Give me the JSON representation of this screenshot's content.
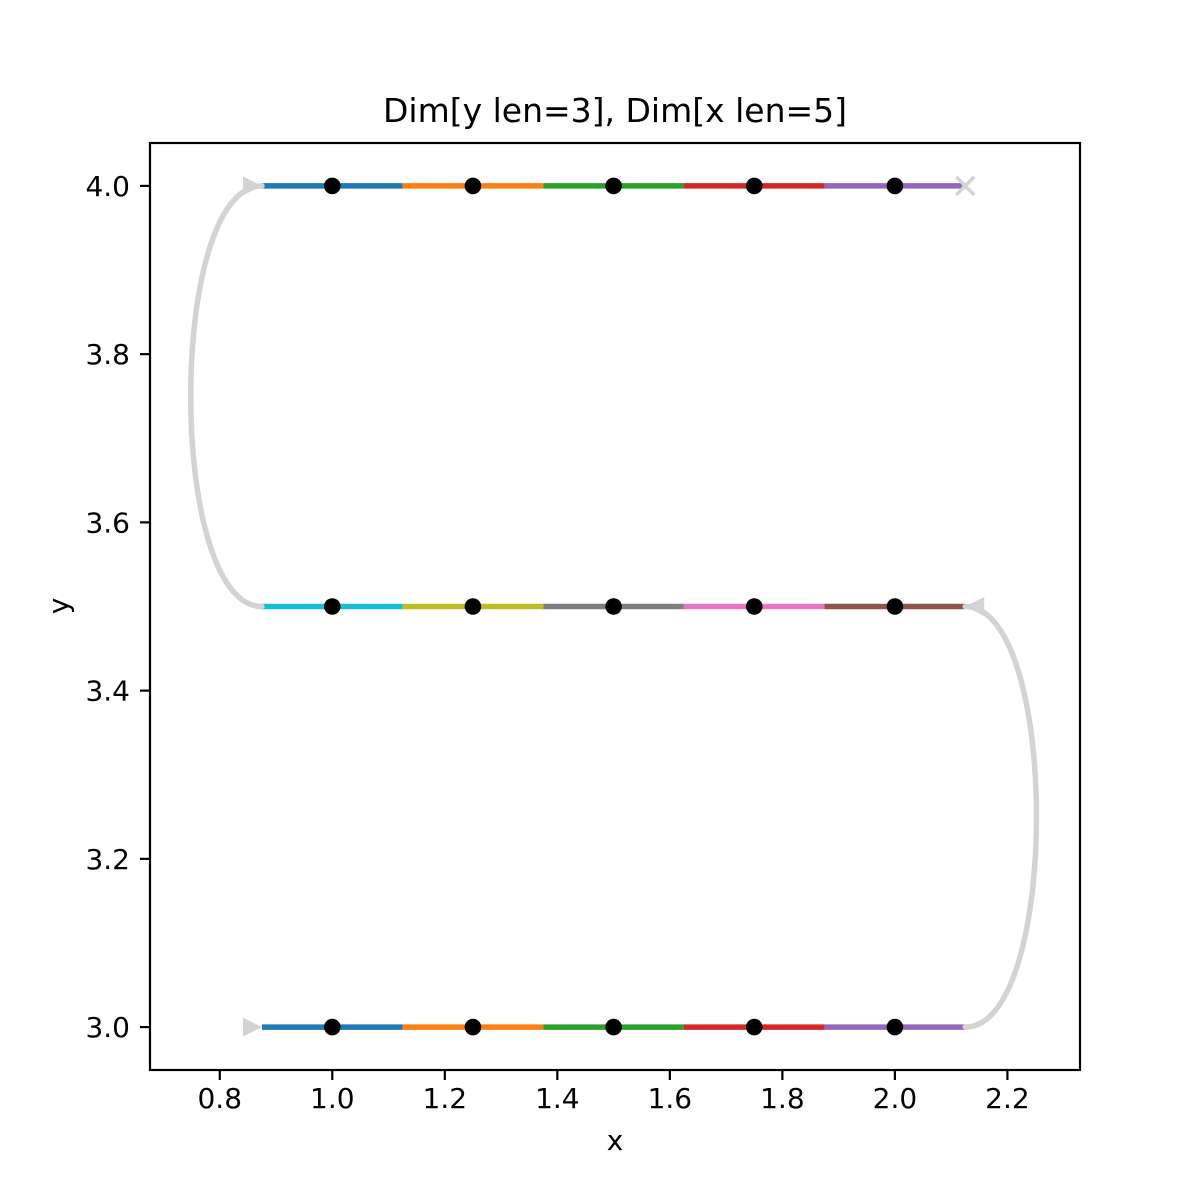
{
  "chart_data": {
    "type": "line",
    "title": "Dim[y len=3], Dim[x len=5]",
    "xlabel": "x",
    "ylabel": "y",
    "grid": false,
    "legend": null,
    "xlim": [
      0.676,
      2.329
    ],
    "ylim": [
      2.949,
      4.051
    ],
    "x_tick_values": [
      0.8,
      1.0,
      1.2,
      1.4,
      1.6,
      1.8,
      2.0,
      2.2
    ],
    "x_tick_labels": [
      "0.8",
      "1.0",
      "1.2",
      "1.4",
      "1.6",
      "1.8",
      "2.0",
      "2.2"
    ],
    "y_tick_values": [
      3.0,
      3.2,
      3.4,
      3.6,
      3.8,
      4.0
    ],
    "y_tick_labels": [
      "3.0",
      "3.2",
      "3.4",
      "3.6",
      "3.8",
      "4.0"
    ],
    "point_x_values": [
      1.0,
      1.25,
      1.5,
      1.75,
      2.0
    ],
    "row_y_values": [
      3.0,
      3.5,
      4.0
    ],
    "segment_boundaries": [
      0.875,
      1.125,
      1.375,
      1.625,
      1.875,
      2.125
    ],
    "rows": [
      {
        "y": 3.0,
        "scan_direction": "left-to-right",
        "segment_colors": [
          "#1f77b4",
          "#ff7f0e",
          "#2ca02c",
          "#d62728",
          "#9467bd"
        ]
      },
      {
        "y": 3.5,
        "scan_direction": "right-to-left",
        "segment_colors": [
          "#17becf",
          "#bcbd22",
          "#7f7f7f",
          "#e377c2",
          "#8c564b"
        ]
      },
      {
        "y": 4.0,
        "scan_direction": "left-to-right",
        "segment_colors": [
          "#1f77b4",
          "#ff7f0e",
          "#2ca02c",
          "#d62728",
          "#9467bd"
        ]
      }
    ],
    "point_marker_color": "#000000",
    "connector_color": "#d3d3d3",
    "connectors": [
      {
        "from": [
          2.125,
          3.0
        ],
        "to": [
          2.125,
          3.5
        ],
        "side": "right"
      },
      {
        "from": [
          0.875,
          3.5
        ],
        "to": [
          0.875,
          4.0
        ],
        "side": "left"
      }
    ],
    "endpoint_markers": [
      {
        "x": 0.875,
        "y": 3.0,
        "shape": "triangle-right",
        "meaning": "traversal-start"
      },
      {
        "x": 2.125,
        "y": 3.5,
        "shape": "triangle-left",
        "meaning": "arrive-middle-row"
      },
      {
        "x": 0.875,
        "y": 4.0,
        "shape": "triangle-right",
        "meaning": "arrive-top-row"
      },
      {
        "x": 2.125,
        "y": 4.0,
        "shape": "x",
        "meaning": "traversal-end"
      }
    ],
    "frame_color": "#000000",
    "background_color": "#ffffff"
  }
}
